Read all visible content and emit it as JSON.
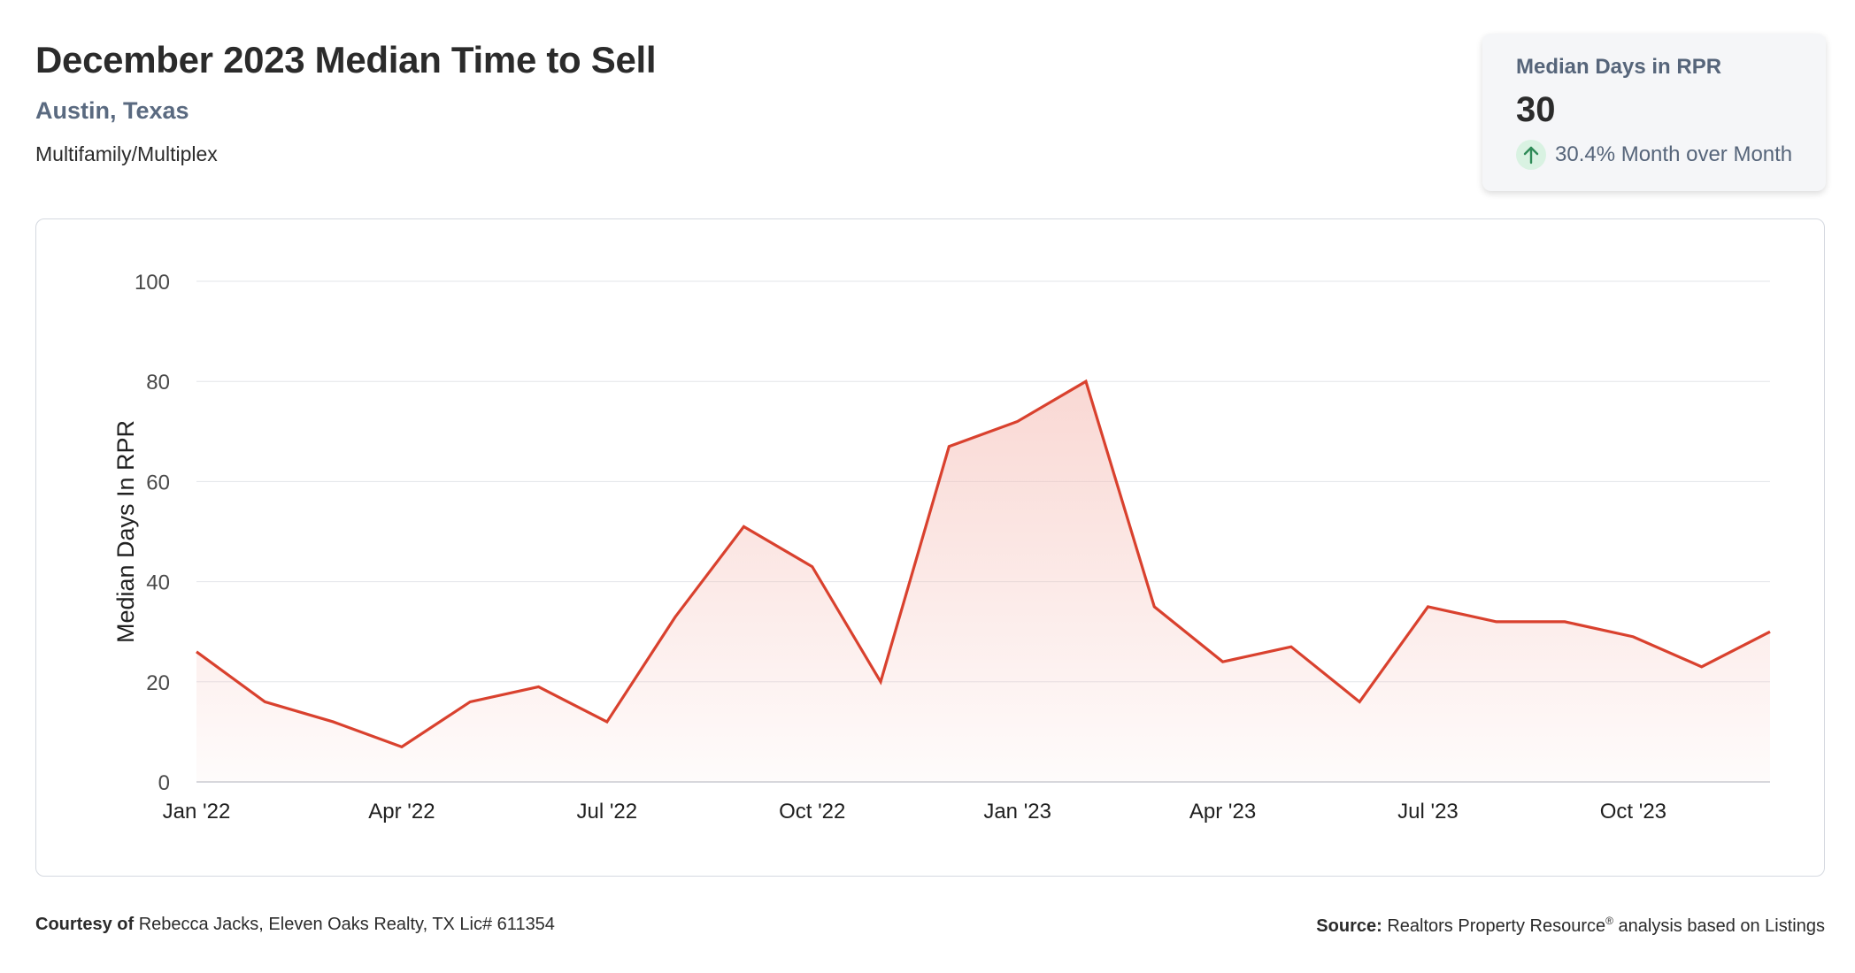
{
  "header": {
    "title": "December 2023 Median Time to Sell",
    "location": "Austin, Texas",
    "property_type": "Multifamily/Multiplex"
  },
  "stat_card": {
    "label": "Median Days in RPR",
    "value": "30",
    "change_text": "30.4% Month over Month",
    "icon": "up-arrow-icon",
    "icon_color": "#2e8b57",
    "icon_bg": "#d9f2e2"
  },
  "footer": {
    "courtesy_label": "Courtesy of",
    "courtesy_text": "Rebecca Jacks, Eleven Oaks Realty, TX Lic# 611354",
    "source_label": "Source:",
    "source_text": "Realtors Property Resource",
    "source_mark": "®",
    "source_suffix": "analysis based on Listings"
  },
  "chart_data": {
    "type": "area",
    "title": "",
    "xlabel": "",
    "ylabel": "Median Days In RPR",
    "ylim": [
      0,
      100
    ],
    "yticks": [
      0,
      20,
      40,
      60,
      80,
      100
    ],
    "grid": true,
    "line_color": "#d9412e",
    "fill_color": "#f4b8b0",
    "x": [
      "Jan '22",
      "Feb '22",
      "Mar '22",
      "Apr '22",
      "May '22",
      "Jun '22",
      "Jul '22",
      "Aug '22",
      "Sep '22",
      "Oct '22",
      "Nov '22",
      "Dec '22",
      "Jan '23",
      "Feb '23",
      "Mar '23",
      "Apr '23",
      "May '23",
      "Jun '23",
      "Jul '23",
      "Aug '23",
      "Sep '23",
      "Oct '23",
      "Nov '23",
      "Dec '23"
    ],
    "xtick_labels": [
      "Jan '22",
      "Apr '22",
      "Jul '22",
      "Oct '22",
      "Jan '23",
      "Apr '23",
      "Jul '23",
      "Oct '23"
    ],
    "series": [
      {
        "values": [
          26,
          16,
          12,
          7,
          16,
          19,
          12,
          33,
          51,
          43,
          20,
          67,
          72,
          80,
          35,
          24,
          27,
          16,
          35,
          32,
          32,
          29,
          23,
          30
        ]
      }
    ]
  }
}
